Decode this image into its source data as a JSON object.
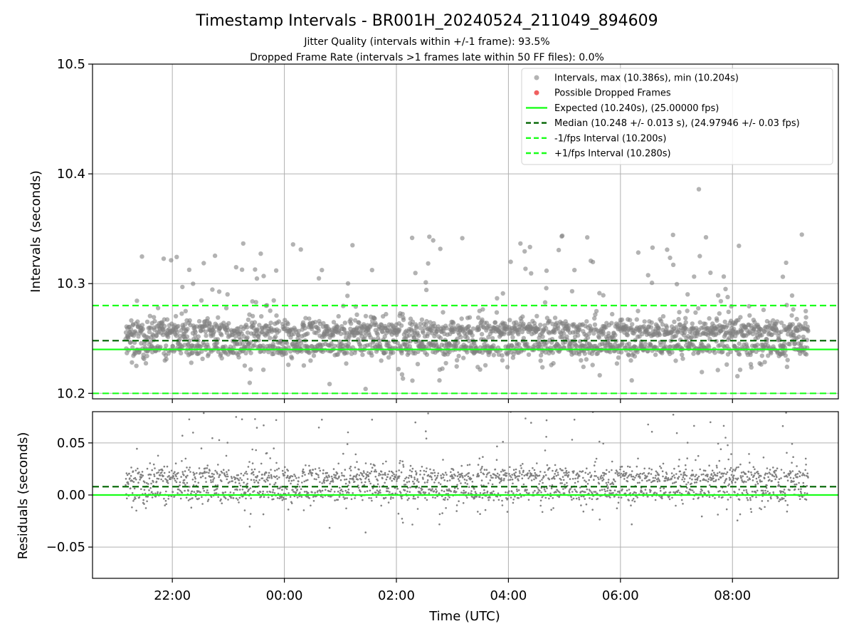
{
  "title": "Timestamp Intervals - BR001H_20240524_211049_894609",
  "subtitle_1": "Jitter Quality (intervals within +/-1 frame): 93.5%",
  "subtitle_2": "Dropped Frame Rate (intervals >1 frames late within 50 FF files): 0.0%",
  "colors": {
    "points": "#808080",
    "dropped": "#f06060",
    "expected": "#19ff19",
    "median": "#006400",
    "fps_interval": "#19ff19",
    "grid": "#b0b0b0"
  },
  "chart_data": [
    {
      "type": "scatter",
      "panel": "intervals",
      "ylabel": "Intervals (seconds)",
      "ylim": [
        10.195,
        10.5
      ],
      "yticks": [
        10.2,
        10.3,
        10.4,
        10.5
      ],
      "ytick_labels": [
        "10.2",
        "10.3",
        "10.4",
        "10.5"
      ],
      "xlim_hours": [
        20.575,
        33.89
      ],
      "data_range_hours": [
        21.167,
        33.35
      ],
      "grid": true,
      "legend_position": "top-right",
      "legend": [
        "Intervals, max (10.386s), min (10.204s)",
        "Possible Dropped Frames",
        "Expected (10.240s), (25.00000 fps)",
        "Median (10.248 +/- 0.013 s), (24.97946 +/- 0.03 fps)",
        "-1/fps Interval (10.200s)",
        "+1/fps Interval (10.280s)"
      ],
      "series": [
        {
          "name": "Intervals, max (10.386s), min (10.204s)",
          "kind": "scatter",
          "max": 10.386,
          "min": 10.204,
          "typical_band": [
            10.225,
            10.265
          ]
        },
        {
          "name": "Possible Dropped Frames",
          "kind": "scatter",
          "count": 0
        },
        {
          "name": "Expected (10.240s), (25.00000 fps)",
          "kind": "hline",
          "y": 10.24
        },
        {
          "name": "Median (10.248 +/- 0.013 s), (24.97946 +/- 0.03 fps)",
          "kind": "hline",
          "y": 10.248
        },
        {
          "name": "-1/fps Interval (10.200s)",
          "kind": "hline",
          "y": 10.2
        },
        {
          "name": "+1/fps Interval (10.280s)",
          "kind": "hline",
          "y": 10.28
        }
      ]
    },
    {
      "type": "scatter",
      "panel": "residuals",
      "xlabel": "Time (UTC)",
      "ylabel": "Residuals (seconds)",
      "ylim": [
        -0.08,
        0.08
      ],
      "yticks": [
        -0.05,
        0.0,
        0.05
      ],
      "ytick_labels": [
        "−0.05",
        "0.00",
        "0.05"
      ],
      "xticks_hours": [
        22,
        24,
        26,
        28,
        30,
        32
      ],
      "xtick_labels": [
        "22:00",
        "00:00",
        "02:00",
        "04:00",
        "06:00",
        "08:00"
      ],
      "xlim_hours": [
        20.575,
        33.89
      ],
      "grid": true,
      "series": [
        {
          "kind": "scatter",
          "typical_band": [
            -0.02,
            0.03
          ]
        },
        {
          "kind": "hline",
          "y": 0.0
        },
        {
          "kind": "hline",
          "y": 0.008
        }
      ]
    }
  ]
}
